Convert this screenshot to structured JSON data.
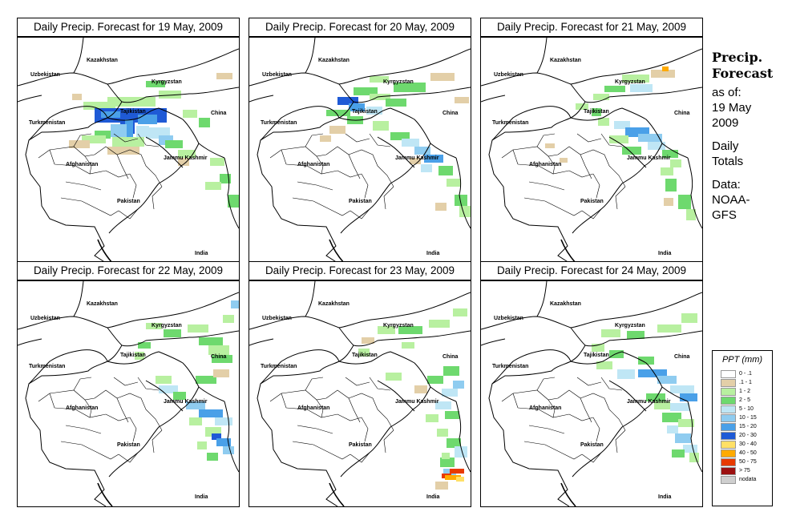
{
  "panels": [
    {
      "title": "Daily Precip. Forecast for  19 May, 2009",
      "scenario": "d1"
    },
    {
      "title": "Daily Precip. Forecast for  20 May, 2009",
      "scenario": "d2"
    },
    {
      "title": "Daily Precip. Forecast for  21 May, 2009",
      "scenario": "d3"
    },
    {
      "title": "Daily Precip. Forecast for  22 May, 2009",
      "scenario": "d4"
    },
    {
      "title": "Daily Precip. Forecast for  23 May, 2009",
      "scenario": "d5"
    },
    {
      "title": "Daily Precip. Forecast for  24 May, 2009",
      "scenario": "d6"
    }
  ],
  "map_labels": {
    "kazakhstan": "Kazakhstan",
    "uzbekistan": "Uzbekistan",
    "kyrgyzstan": "Kyrgyzstan",
    "tajikistan": "Tajikistan",
    "turkmenistan": "Turkmenistan",
    "china": "China",
    "afghanistan": "Afghanistan",
    "jammu_kashmir": "Jammu Kashmir",
    "pakistan": "Pakistan",
    "india": "India"
  },
  "info": {
    "title_line1": "Precip.",
    "title_line2": "Forecast",
    "asof_line1": "as of:",
    "asof_line2": "19 May",
    "asof_line3": "2009",
    "daily_line1": "Daily",
    "daily_line2": "Totals",
    "data_line1": "Data:",
    "data_line2": "NOAA-",
    "data_line3": "GFS"
  },
  "legend": {
    "title": "PPT (mm)",
    "items": [
      {
        "label": "0 - .1",
        "color": "#ffffff"
      },
      {
        "label": ".1 - 1",
        "color": "#e3cfa8"
      },
      {
        "label": "1 - 2",
        "color": "#b8f0a0"
      },
      {
        "label": "2 - 5",
        "color": "#6ed96e"
      },
      {
        "label": "5 - 10",
        "color": "#bfe6f5"
      },
      {
        "label": "10 - 15",
        "color": "#8fccf0"
      },
      {
        "label": "15 - 20",
        "color": "#4aa0e8"
      },
      {
        "label": "20 - 30",
        "color": "#1f5ad6"
      },
      {
        "label": "30 - 40",
        "color": "#ffe066"
      },
      {
        "label": "40 - 50",
        "color": "#ffaa00"
      },
      {
        "label": "50 - 75",
        "color": "#e83a00"
      },
      {
        "label": "> 75",
        "color": "#9c1010"
      },
      {
        "label": "nodata",
        "color": "#cfcfcf"
      }
    ]
  }
}
